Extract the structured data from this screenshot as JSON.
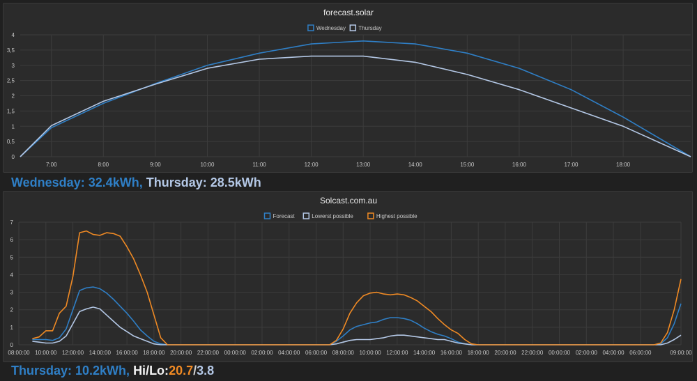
{
  "chart_data": [
    {
      "type": "line",
      "title": "forecast.solar",
      "xlabel": "",
      "ylabel": "",
      "x": [
        6.4,
        7,
        8,
        9,
        10,
        11,
        12,
        13,
        14,
        15,
        16,
        17,
        18,
        19.3
      ],
      "xticks": [
        7,
        8,
        9,
        10,
        11,
        12,
        13,
        14,
        15,
        16,
        17,
        18
      ],
      "xtick_labels": [
        "7:00",
        "8:00",
        "9:00",
        "10:00",
        "11:00",
        "12:00",
        "13:00",
        "14:00",
        "15:00",
        "16:00",
        "17:00",
        "18:00"
      ],
      "xlim": [
        6.4,
        19.3
      ],
      "ylim": [
        0,
        4
      ],
      "yticks": [
        0,
        0.5,
        1,
        1.5,
        2,
        2.5,
        3,
        3.5,
        4
      ],
      "ytick_labels": [
        "0",
        "0,5",
        "1",
        "1,5",
        "2",
        "2,5",
        "3",
        "3,5",
        "4"
      ],
      "grid": true,
      "legend": "top-center",
      "series": [
        {
          "name": "Wednesday",
          "color": "#2f7fc6",
          "values": [
            0,
            0.95,
            1.75,
            2.4,
            3.0,
            3.4,
            3.7,
            3.8,
            3.7,
            3.4,
            2.9,
            2.2,
            1.3,
            0
          ]
        },
        {
          "name": "Thursday",
          "color": "#b4c8e6",
          "values": [
            0,
            1.02,
            1.82,
            2.38,
            2.9,
            3.2,
            3.3,
            3.3,
            3.1,
            2.7,
            2.2,
            1.6,
            1.0,
            0
          ]
        }
      ]
    },
    {
      "type": "line",
      "title": "Solcast.com.au",
      "xlabel": "",
      "ylabel": "",
      "x": [
        9,
        9.5,
        10,
        10.5,
        11,
        11.5,
        12,
        12.5,
        13,
        13.5,
        14,
        14.5,
        15,
        15.5,
        16,
        16.5,
        17,
        17.5,
        18,
        18.5,
        19,
        19.5,
        20,
        31,
        31.5,
        32,
        32.5,
        33,
        33.5,
        34,
        34.5,
        35,
        35.5,
        36,
        36.5,
        37,
        37.5,
        38,
        38.5,
        39,
        39.5,
        40,
        40.5,
        41,
        41.5,
        42,
        42.5,
        43,
        43.5,
        44,
        55,
        55.5,
        56,
        56.5,
        57
      ],
      "xticks": [
        8,
        10,
        12,
        14,
        16,
        18,
        20,
        22,
        24,
        26,
        28,
        30,
        32,
        34,
        36,
        38,
        40,
        42,
        44,
        46,
        48,
        50,
        52,
        54,
        57
      ],
      "xtick_labels": [
        "08:00:00",
        "10:00:00",
        "12:00:00",
        "14:00:00",
        "16:00:00",
        "18:00:00",
        "20:00:00",
        "22:00:00",
        "00:00:00",
        "02:00:00",
        "04:00:00",
        "06:00:00",
        "08:00:00",
        "10:00:00",
        "12:00:00",
        "14:00:00",
        "16:00:00",
        "18:00:00",
        "20:00:00",
        "22:00:00",
        "00:00:00",
        "02:00:00",
        "04:00:00",
        "06:00:00",
        "09:00:00"
      ],
      "xlim": [
        8,
        57
      ],
      "ylim": [
        0,
        7
      ],
      "yticks": [
        0,
        1,
        2,
        3,
        4,
        5,
        6,
        7
      ],
      "ytick_labels": [
        "0",
        "1",
        "2",
        "3",
        "4",
        "5",
        "6",
        "7"
      ],
      "grid": true,
      "legend": "top-center",
      "series": [
        {
          "name": "Forecast",
          "color": "#2f7fc6",
          "values": [
            0.3,
            0.3,
            0.3,
            0.25,
            0.4,
            0.9,
            2.0,
            3.1,
            3.25,
            3.3,
            3.2,
            2.95,
            2.6,
            2.2,
            1.8,
            1.35,
            0.85,
            0.5,
            0.2,
            0.05,
            0,
            0,
            0,
            0,
            0.2,
            0.5,
            0.85,
            1.05,
            1.15,
            1.25,
            1.3,
            1.45,
            1.55,
            1.55,
            1.5,
            1.4,
            1.2,
            0.95,
            0.75,
            0.6,
            0.5,
            0.35,
            0.15,
            0.05,
            0,
            0,
            0,
            0,
            0,
            0,
            0,
            0.05,
            0.4,
            1.2,
            2.35
          ]
        },
        {
          "name": "Lowerst possible",
          "color": "#b4c8e6",
          "values": [
            0.2,
            0.15,
            0.1,
            0.1,
            0.2,
            0.5,
            1.2,
            1.9,
            2.05,
            2.15,
            2.05,
            1.7,
            1.35,
            1.0,
            0.75,
            0.5,
            0.35,
            0.2,
            0.05,
            0,
            0,
            0,
            0,
            0,
            0.05,
            0.15,
            0.25,
            0.3,
            0.3,
            0.3,
            0.35,
            0.4,
            0.5,
            0.55,
            0.55,
            0.5,
            0.45,
            0.4,
            0.35,
            0.3,
            0.3,
            0.2,
            0.1,
            0.05,
            0,
            0,
            0,
            0,
            0,
            0,
            0,
            0,
            0.1,
            0.3,
            0.55
          ]
        },
        {
          "name": "Highest possible",
          "color": "#f08a24",
          "values": [
            0.35,
            0.45,
            0.8,
            0.8,
            1.8,
            2.2,
            3.9,
            6.4,
            6.5,
            6.3,
            6.25,
            6.4,
            6.35,
            6.2,
            5.6,
            4.9,
            4.0,
            3.0,
            1.7,
            0.4,
            0,
            0,
            0,
            0,
            0.25,
            0.9,
            1.8,
            2.4,
            2.8,
            2.95,
            3.0,
            2.9,
            2.85,
            2.9,
            2.85,
            2.7,
            2.5,
            2.2,
            1.9,
            1.5,
            1.15,
            0.85,
            0.65,
            0.3,
            0.05,
            0,
            0,
            0,
            0,
            0,
            0,
            0.1,
            0.7,
            2.0,
            3.75
          ]
        }
      ]
    }
  ],
  "summary1": {
    "part1": "Wednesday: 32.4kWh,",
    "part2": "Thursday: 28.5kWh"
  },
  "summary2": {
    "part1": "Thursday: 10.2kWh,",
    "part2": "Hi/Lo:",
    "part3": "20.7",
    "part4": "/",
    "part5": "3.8"
  },
  "colors": {
    "blue": "#2f7fc6",
    "light": "#b4c8e6",
    "orange": "#f08a24",
    "grid": "#3c3c3c",
    "axis_text": "#c8c8c8",
    "title_text": "#e8e8e8"
  }
}
